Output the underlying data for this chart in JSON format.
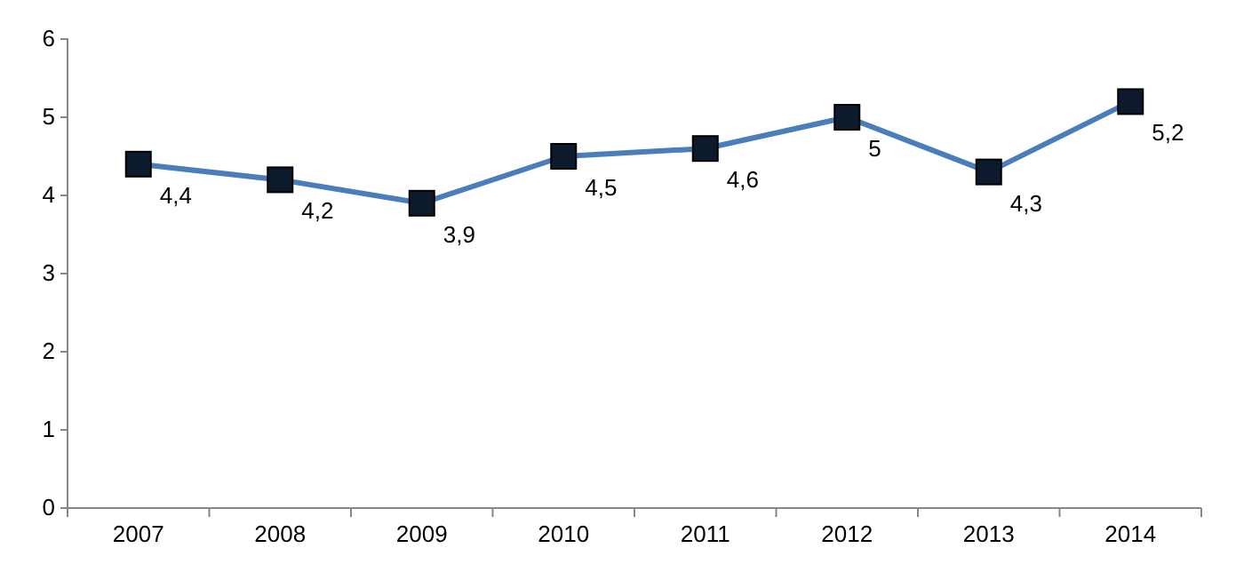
{
  "chart_data": {
    "type": "line",
    "categories": [
      "2007",
      "2008",
      "2009",
      "2010",
      "2011",
      "2012",
      "2013",
      "2014"
    ],
    "series": [
      {
        "color": "#4a7ebb",
        "values": [
          4.4,
          4.2,
          3.9,
          4.5,
          4.6,
          5,
          4.3,
          5.2
        ],
        "value_labels": [
          "4,4",
          "4,2",
          "3,9",
          "4,5",
          "4,6",
          "5",
          "4,3",
          "5,2"
        ]
      }
    ],
    "ylim": [
      0,
      6
    ],
    "yticks": [
      0,
      1,
      2,
      3,
      4,
      5,
      6
    ],
    "marker": "square",
    "line_style": "solid",
    "grid": false
  }
}
